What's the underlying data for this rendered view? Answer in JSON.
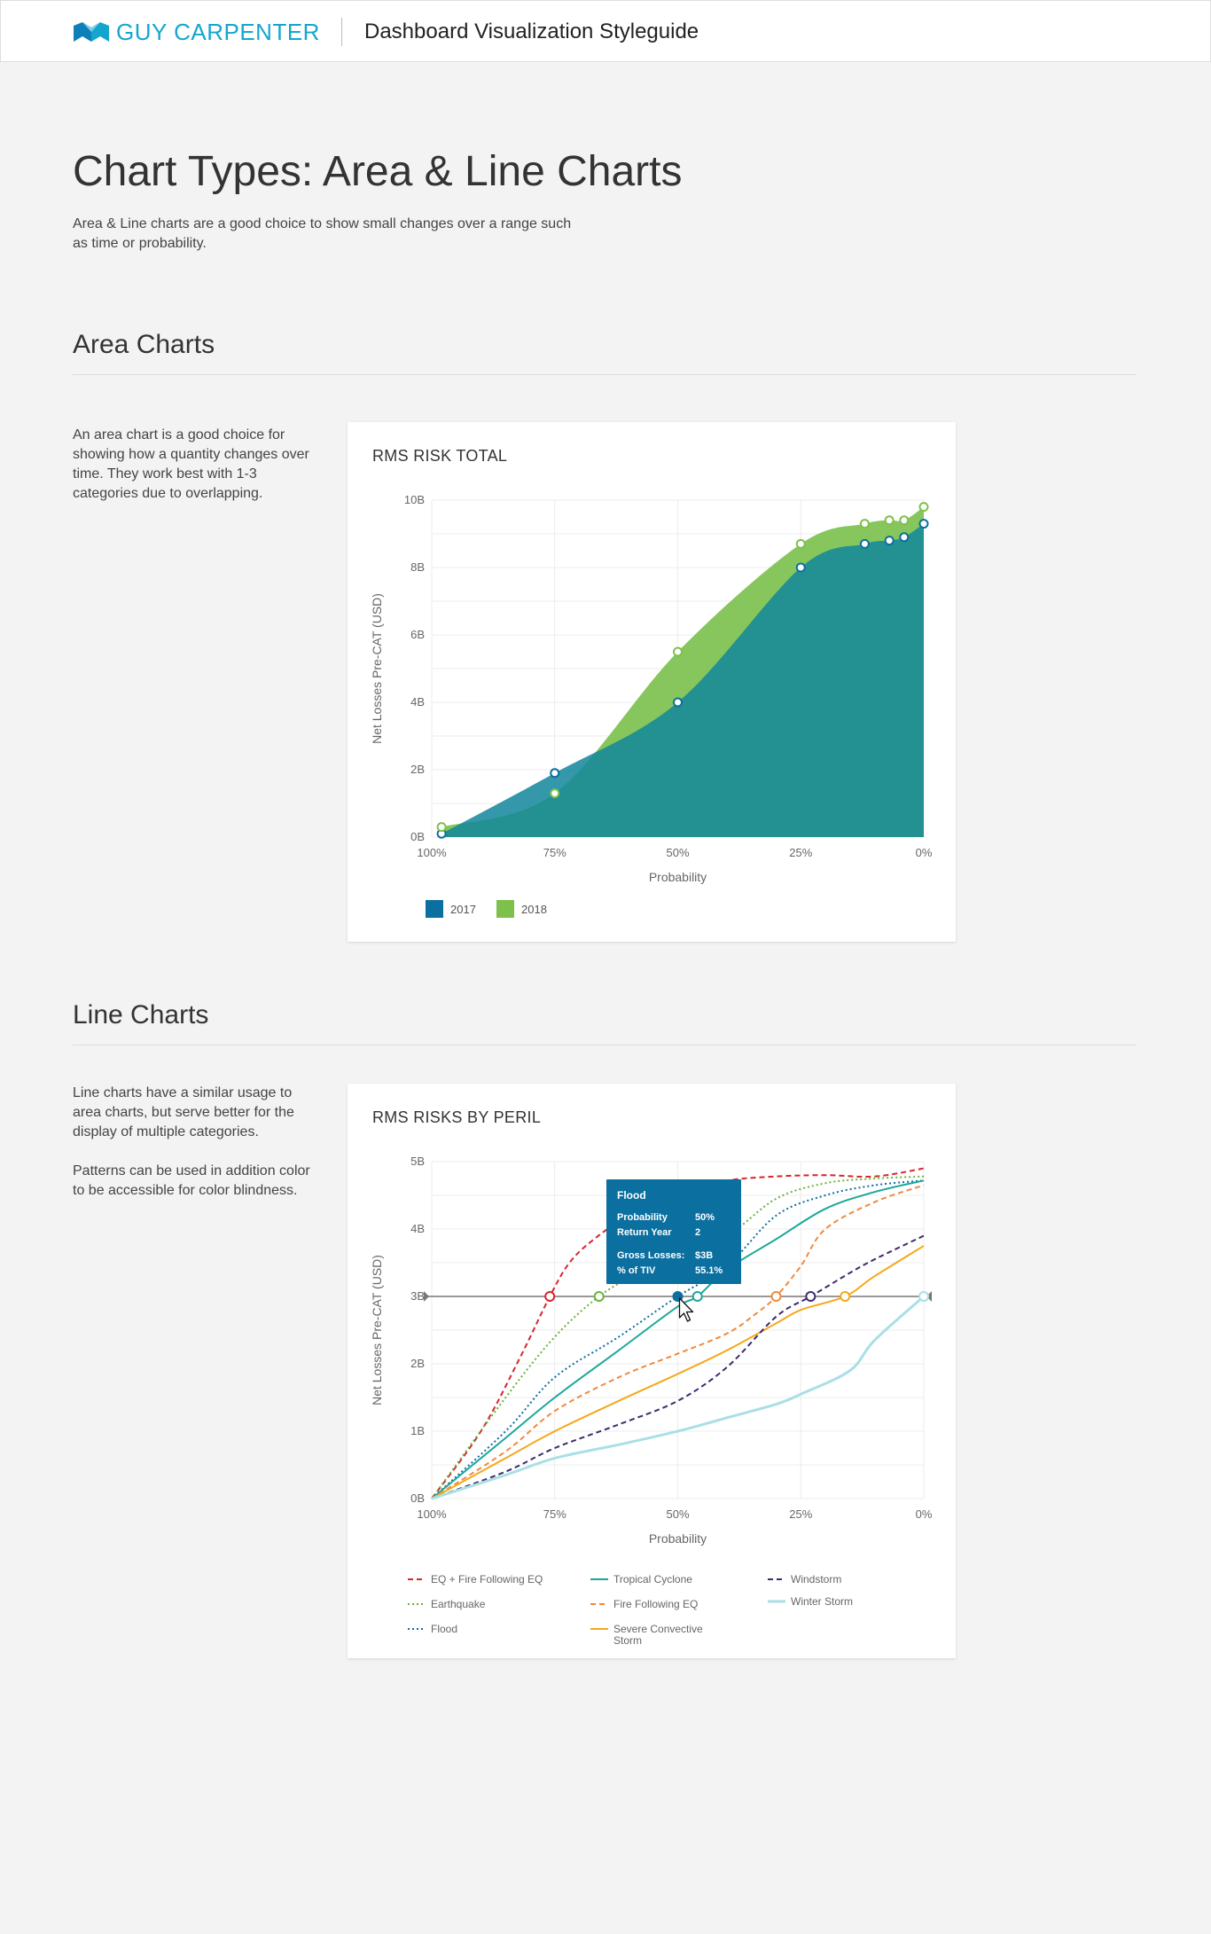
{
  "header": {
    "brand": "GUY CARPENTER",
    "title": "Dashboard Visualization Styleguide",
    "brand_color": "#14a6cf"
  },
  "page": {
    "title": "Chart Types: Area & Line Charts",
    "description": "Area & Line charts are a good choice to show small changes over a range such as time or probability."
  },
  "area_section": {
    "title": "Area Charts",
    "description": "An area chart is a good choice for showing how a quantity changes over time. They work best with 1-3 categories due to overlapping."
  },
  "line_section": {
    "title": "Line Charts",
    "description_1": "Line charts have a similar usage to area charts, but serve better for the display of multiple categories.",
    "description_2": "Patterns can be used in addition color to be accessible for color blindness."
  },
  "chart_data": [
    {
      "type": "area",
      "title": "RMS RISK TOTAL",
      "xlabel": "Probability",
      "ylabel": "Net Losses Pre-CAT (USD)",
      "x_ticks": [
        "100%",
        "75%",
        "50%",
        "25%",
        "0%"
      ],
      "y_ticks": [
        "0B",
        "2B",
        "4B",
        "6B",
        "8B",
        "10B"
      ],
      "xlim": [
        100,
        0
      ],
      "ylim": [
        0,
        10
      ],
      "grid": true,
      "legend": "bottom-left",
      "series": [
        {
          "name": "2017",
          "color": "#0b6f9f",
          "fill": "#12869b",
          "x": [
            98,
            75,
            50,
            25,
            12,
            7,
            4,
            0
          ],
          "y": [
            0.1,
            1.9,
            4.0,
            8.0,
            8.7,
            8.8,
            8.9,
            9.3
          ]
        },
        {
          "name": "2018",
          "color": "#7dc04b",
          "fill": "#86c65c",
          "x": [
            98,
            75,
            50,
            25,
            12,
            7,
            4,
            0
          ],
          "y": [
            0.3,
            1.3,
            5.5,
            8.7,
            9.3,
            9.4,
            9.4,
            9.8
          ]
        }
      ]
    },
    {
      "type": "line",
      "title": "RMS RISKS BY PERIL",
      "xlabel": "Probability",
      "ylabel": "Net Losses Pre-CAT (USD)",
      "x_ticks": [
        "100%",
        "75%",
        "50%",
        "25%",
        "0%"
      ],
      "y_ticks": [
        "0B",
        "1B",
        "2B",
        "3B",
        "4B",
        "5B"
      ],
      "xlim": [
        100,
        0
      ],
      "ylim": [
        0,
        5
      ],
      "grid": true,
      "legend": "bottom",
      "reference_line": 3,
      "series": [
        {
          "name": "EQ + Fire Following EQ",
          "color": "#d7262e",
          "dash": "dashed",
          "x": [
            100,
            90,
            82,
            76,
            72,
            67,
            60,
            50,
            40,
            30,
            20,
            10,
            0
          ],
          "y": [
            0,
            1.0,
            2.1,
            3.0,
            3.5,
            3.85,
            4.2,
            4.55,
            4.72,
            4.78,
            4.8,
            4.78,
            4.9
          ]
        },
        {
          "name": "Earthquake",
          "color": "#6ab23a",
          "dash": "dotted",
          "x": [
            100,
            85,
            75,
            66,
            58,
            50,
            40,
            30,
            20,
            10,
            0
          ],
          "y": [
            0,
            1.5,
            2.4,
            3.0,
            3.35,
            3.65,
            3.9,
            4.45,
            4.68,
            4.75,
            4.78
          ]
        },
        {
          "name": "Flood",
          "color": "#0b6f9f",
          "dash": "dotted",
          "x": [
            100,
            85,
            75,
            62,
            50,
            40,
            30,
            20,
            10,
            0
          ],
          "y": [
            0,
            1.0,
            1.8,
            2.4,
            3.0,
            3.45,
            4.2,
            4.5,
            4.65,
            4.72
          ]
        },
        {
          "name": "Tropical Cyclone",
          "color": "#1ba79a",
          "dash": "solid",
          "x": [
            100,
            85,
            75,
            62,
            50,
            46,
            40,
            30,
            20,
            10,
            0
          ],
          "y": [
            0,
            0.9,
            1.5,
            2.2,
            2.85,
            3.0,
            3.4,
            3.85,
            4.3,
            4.55,
            4.72
          ]
        },
        {
          "name": "Fire Following EQ",
          "color": "#f08a3e",
          "dash": "dashed",
          "x": [
            100,
            85,
            75,
            62,
            50,
            40,
            34,
            30,
            25,
            20,
            10,
            0
          ],
          "y": [
            0,
            0.7,
            1.3,
            1.8,
            2.15,
            2.45,
            2.75,
            3.0,
            3.45,
            4.0,
            4.4,
            4.65
          ]
        },
        {
          "name": "Severe Convective Storm",
          "color": "#f5a81a",
          "dash": "solid",
          "x": [
            100,
            85,
            75,
            62,
            50,
            40,
            30,
            25,
            16,
            10,
            0
          ],
          "y": [
            0,
            0.6,
            1.0,
            1.45,
            1.85,
            2.2,
            2.6,
            2.8,
            3.0,
            3.3,
            3.75
          ]
        },
        {
          "name": "Windstorm",
          "color": "#3f2a6e",
          "dash": "dashed",
          "x": [
            100,
            85,
            75,
            62,
            50,
            40,
            30,
            23,
            15,
            10,
            0
          ],
          "y": [
            0,
            0.4,
            0.75,
            1.1,
            1.45,
            1.95,
            2.7,
            3.0,
            3.35,
            3.55,
            3.9
          ]
        },
        {
          "name": "Winter Storm",
          "color": "#a9dfe6",
          "dash": "solid",
          "x": [
            100,
            85,
            75,
            62,
            50,
            40,
            30,
            25,
            15,
            10,
            0
          ],
          "y": [
            0,
            0.35,
            0.6,
            0.8,
            1.0,
            1.2,
            1.4,
            1.55,
            1.9,
            2.35,
            3.0
          ]
        }
      ],
      "markers": [
        {
          "series": "EQ + Fire Following EQ",
          "x": 76,
          "y": 3
        },
        {
          "series": "Earthquake",
          "x": 66,
          "y": 3
        },
        {
          "series": "Flood",
          "x": 50,
          "y": 3
        },
        {
          "series": "Tropical Cyclone",
          "x": 46,
          "y": 3
        },
        {
          "series": "Fire Following EQ",
          "x": 30,
          "y": 3
        },
        {
          "series": "Windstorm",
          "x": 23,
          "y": 3
        },
        {
          "series": "Severe Convective Storm",
          "x": 16,
          "y": 3
        },
        {
          "series": "Winter Storm",
          "x": 0,
          "y": 3
        }
      ],
      "tooltip": {
        "title": "Flood",
        "rows": [
          {
            "label": "Probability",
            "value": "50%"
          },
          {
            "label": "Return Year",
            "value": "2"
          },
          {
            "label": "Gross Losses:",
            "value": "$3B"
          },
          {
            "label": "% of TIV",
            "value": "55.1%"
          }
        ],
        "background": "#0b6f9f"
      }
    }
  ]
}
